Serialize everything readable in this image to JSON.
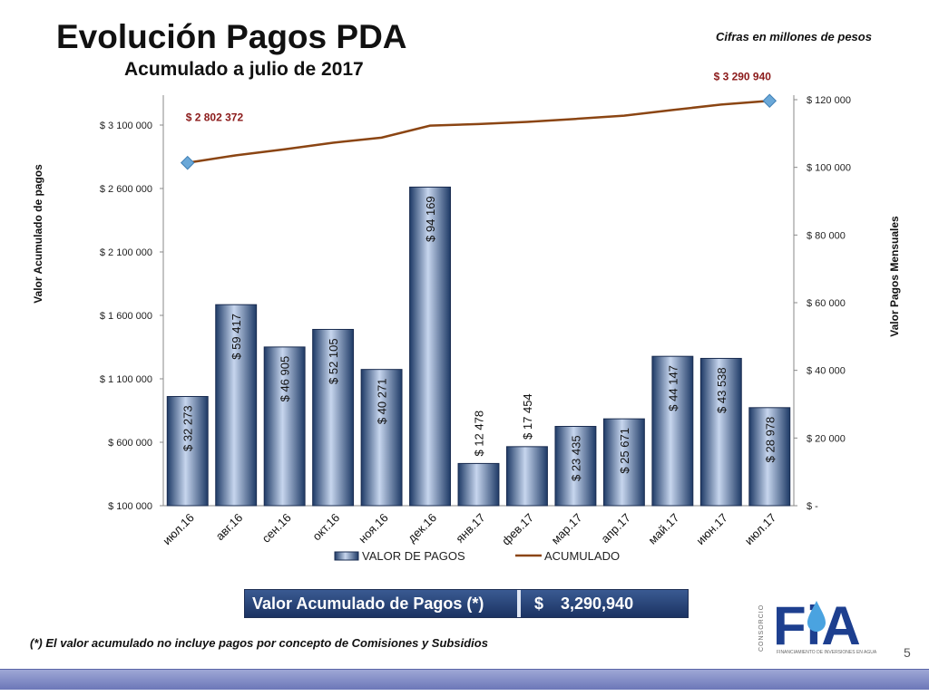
{
  "slide": {
    "title": "Evolución Pagos PDA",
    "subtitle": "Acumulado a julio de 2017",
    "units_note": "Cifras en millones de pesos",
    "summary_label": "Valor Acumulado de Pagos (*)",
    "summary_currency": "$",
    "summary_value": "3,290,940",
    "footnote": "(*) El valor acumulado no incluye pagos por concepto de Comisiones y Subsidios",
    "page_number": "5",
    "logo": {
      "letters": "FiA",
      "side_text": "CONSORCIO",
      "caption": "FINANCIAMIENTO DE INVERSIONES EN AGUA"
    }
  },
  "colors": {
    "bar_dark": "#1e3a66",
    "bar_light": "#c7d6ee",
    "line": "#8b4513",
    "marker": "#6aa8d8",
    "annotation": "#8b1a1a",
    "footer_bar": "#8f98cf"
  },
  "chart_data": {
    "type": "bar",
    "categories": [
      "июл.16",
      "авг.16",
      "сен.16",
      "окт.16",
      "ноя.16",
      "дек.16",
      "янв.17",
      "фев.17",
      "мар.17",
      "апр.17",
      "май.17",
      "июн.17",
      "июл.17"
    ],
    "series": [
      {
        "name": "VALOR DE PAGOS",
        "type": "bar",
        "axis": "right",
        "values": [
          32273,
          59417,
          46905,
          52105,
          40271,
          94169,
          12478,
          17454,
          23435,
          25671,
          44147,
          43538,
          28978
        ],
        "labels": [
          "$ 32 273",
          "$ 59 417",
          "$ 46 905",
          "$ 52 105",
          "$ 40 271",
          "$ 94 169",
          "$ 12 478",
          "$ 17 454",
          "$ 23 435",
          "$ 25 671",
          "$ 44 147",
          "$ 43 538",
          "$ 28 978"
        ]
      },
      {
        "name": "ACUMULADO",
        "type": "line",
        "axis": "left",
        "values": [
          2802372,
          2861789,
          2908694,
          2960799,
          3001070,
          3095239,
          3107717,
          3125171,
          3148606,
          3174277,
          3218424,
          3261962,
          3290940
        ]
      }
    ],
    "left_axis": {
      "label": "Valor Acumulado de pagos",
      "range": [
        100000,
        3300000
      ],
      "ticks": [
        100000,
        600000,
        1100000,
        1600000,
        2100000,
        2600000,
        3100000
      ],
      "tick_labels": [
        "$ 100 000",
        "$ 600 000",
        "$ 1 100 000",
        "$ 1 600 000",
        "$ 2 100 000",
        "$ 2 600 000",
        "$ 3 100 000"
      ]
    },
    "right_axis": {
      "label": "Valor Pagos Mensuales",
      "range": [
        0,
        120000
      ],
      "ticks": [
        0,
        20000,
        40000,
        60000,
        80000,
        100000,
        120000
      ],
      "tick_labels": [
        "$ -",
        "$ 20 000",
        "$ 40 000",
        "$ 60 000",
        "$ 80 000",
        "$ 100 000",
        "$ 120 000"
      ]
    },
    "annotations": [
      {
        "text": "$ 2 802 372",
        "point_index": 0
      },
      {
        "text": "$ 3 290 940",
        "point_index": 12
      }
    ],
    "legend": {
      "position": "bottom",
      "entries": [
        "VALOR DE PAGOS",
        "ACUMULADO"
      ]
    },
    "grid": false
  }
}
